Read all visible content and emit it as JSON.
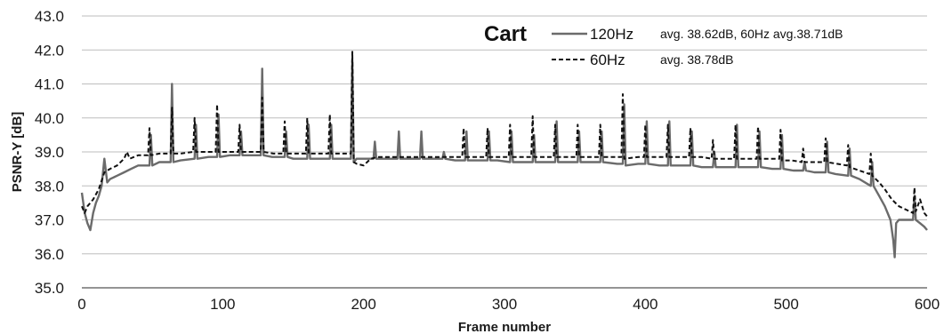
{
  "chart_data": {
    "type": "line",
    "title": "Cart",
    "xlabel": "Frame number",
    "ylabel": "PSNR-Y [dB]",
    "xlim": [
      0,
      600
    ],
    "ylim": [
      35.0,
      43.0
    ],
    "x_ticks": [
      "0",
      "100",
      "200",
      "300",
      "400",
      "500",
      "600"
    ],
    "y_ticks": [
      "35.0",
      "36.0",
      "37.0",
      "38.0",
      "39.0",
      "40.0",
      "41.0",
      "42.0",
      "43.0"
    ],
    "grid": "horizontal",
    "legend": {
      "position": "top-right",
      "entries": [
        {
          "series": "120Hz",
          "label": "120Hz",
          "note": "avg. 38.62dB, 60Hz avg.38.71dB"
        },
        {
          "series": "60Hz",
          "label": "60Hz",
          "note": "avg. 38.78dB"
        }
      ]
    },
    "series": [
      {
        "name": "120Hz",
        "color": "#6b6b6b",
        "style": "solid",
        "points": [
          [
            0,
            37.8
          ],
          [
            2,
            37.2
          ],
          [
            4,
            36.9
          ],
          [
            6,
            36.7
          ],
          [
            8,
            37.2
          ],
          [
            10,
            37.5
          ],
          [
            12,
            37.7
          ],
          [
            14,
            38.0
          ],
          [
            16,
            38.8
          ],
          [
            18,
            38.1
          ],
          [
            20,
            38.2
          ],
          [
            25,
            38.3
          ],
          [
            30,
            38.4
          ],
          [
            35,
            38.5
          ],
          [
            40,
            38.6
          ],
          [
            45,
            38.6
          ],
          [
            48,
            38.6
          ],
          [
            49,
            39.5
          ],
          [
            50,
            38.6
          ],
          [
            55,
            38.7
          ],
          [
            60,
            38.7
          ],
          [
            63,
            38.7
          ],
          [
            64,
            41.0
          ],
          [
            65,
            38.7
          ],
          [
            70,
            38.75
          ],
          [
            80,
            38.8
          ],
          [
            81,
            39.8
          ],
          [
            82,
            38.8
          ],
          [
            90,
            38.85
          ],
          [
            96,
            38.85
          ],
          [
            97,
            40.1
          ],
          [
            98,
            38.85
          ],
          [
            105,
            38.9
          ],
          [
            112,
            38.9
          ],
          [
            113,
            39.6
          ],
          [
            114,
            38.9
          ],
          [
            120,
            38.9
          ],
          [
            127,
            38.9
          ],
          [
            128,
            41.45
          ],
          [
            129,
            38.9
          ],
          [
            135,
            38.85
          ],
          [
            144,
            38.85
          ],
          [
            145,
            39.6
          ],
          [
            146,
            38.85
          ],
          [
            150,
            38.8
          ],
          [
            160,
            38.8
          ],
          [
            161,
            39.8
          ],
          [
            162,
            38.8
          ],
          [
            170,
            38.8
          ],
          [
            176,
            38.8
          ],
          [
            177,
            39.8
          ],
          [
            178,
            38.8
          ],
          [
            185,
            38.8
          ],
          [
            191,
            38.8
          ],
          [
            192,
            41.7
          ],
          [
            193,
            38.7
          ],
          [
            195,
            38.8
          ],
          [
            200,
            38.8
          ],
          [
            207,
            38.8
          ],
          [
            208,
            39.3
          ],
          [
            209,
            38.8
          ],
          [
            215,
            38.8
          ],
          [
            224,
            38.8
          ],
          [
            225,
            39.6
          ],
          [
            226,
            38.8
          ],
          [
            235,
            38.8
          ],
          [
            240,
            38.8
          ],
          [
            241,
            39.6
          ],
          [
            242,
            38.8
          ],
          [
            250,
            38.8
          ],
          [
            256,
            38.8
          ],
          [
            257,
            39.0
          ],
          [
            258,
            38.8
          ],
          [
            265,
            38.75
          ],
          [
            272,
            38.75
          ],
          [
            273,
            39.6
          ],
          [
            274,
            38.75
          ],
          [
            280,
            38.75
          ],
          [
            288,
            38.75
          ],
          [
            289,
            39.6
          ],
          [
            290,
            38.75
          ],
          [
            295,
            38.75
          ],
          [
            304,
            38.7
          ],
          [
            305,
            39.6
          ],
          [
            306,
            38.7
          ],
          [
            315,
            38.7
          ],
          [
            320,
            38.7
          ],
          [
            321,
            39.5
          ],
          [
            322,
            38.7
          ],
          [
            330,
            38.7
          ],
          [
            336,
            38.7
          ],
          [
            337,
            39.9
          ],
          [
            338,
            38.7
          ],
          [
            345,
            38.7
          ],
          [
            352,
            38.7
          ],
          [
            353,
            39.6
          ],
          [
            354,
            38.7
          ],
          [
            360,
            38.7
          ],
          [
            368,
            38.7
          ],
          [
            369,
            39.6
          ],
          [
            370,
            38.7
          ],
          [
            380,
            38.65
          ],
          [
            384,
            38.65
          ],
          [
            385,
            40.4
          ],
          [
            386,
            38.6
          ],
          [
            395,
            38.65
          ],
          [
            400,
            38.65
          ],
          [
            401,
            39.9
          ],
          [
            402,
            38.65
          ],
          [
            410,
            38.6
          ],
          [
            416,
            38.6
          ],
          [
            417,
            39.9
          ],
          [
            418,
            38.6
          ],
          [
            425,
            38.6
          ],
          [
            432,
            38.6
          ],
          [
            433,
            39.6
          ],
          [
            434,
            38.6
          ],
          [
            440,
            38.55
          ],
          [
            448,
            38.55
          ],
          [
            449,
            39.0
          ],
          [
            450,
            38.55
          ],
          [
            460,
            38.55
          ],
          [
            464,
            38.55
          ],
          [
            465,
            39.8
          ],
          [
            466,
            38.55
          ],
          [
            475,
            38.55
          ],
          [
            480,
            38.55
          ],
          [
            481,
            39.6
          ],
          [
            482,
            38.55
          ],
          [
            490,
            38.5
          ],
          [
            496,
            38.5
          ],
          [
            497,
            39.5
          ],
          [
            498,
            38.5
          ],
          [
            505,
            38.45
          ],
          [
            512,
            38.45
          ],
          [
            513,
            38.7
          ],
          [
            514,
            38.45
          ],
          [
            520,
            38.4
          ],
          [
            528,
            38.4
          ],
          [
            529,
            39.3
          ],
          [
            530,
            38.4
          ],
          [
            535,
            38.35
          ],
          [
            544,
            38.3
          ],
          [
            545,
            39.1
          ],
          [
            546,
            38.3
          ],
          [
            552,
            38.2
          ],
          [
            560,
            38.0
          ],
          [
            561,
            38.7
          ],
          [
            562,
            38.0
          ],
          [
            566,
            37.7
          ],
          [
            570,
            37.4
          ],
          [
            574,
            37.0
          ],
          [
            576,
            36.4
          ],
          [
            577,
            35.9
          ],
          [
            578,
            36.9
          ],
          [
            580,
            37.0
          ],
          [
            585,
            37.0
          ],
          [
            590,
            37.0
          ],
          [
            591,
            37.7
          ],
          [
            592,
            37.0
          ],
          [
            595,
            36.9
          ],
          [
            598,
            36.8
          ],
          [
            600,
            36.7
          ]
        ]
      },
      {
        "name": "60Hz",
        "color": "#111111",
        "style": "dashed",
        "points": [
          [
            0,
            37.4
          ],
          [
            2,
            37.2
          ],
          [
            4,
            37.4
          ],
          [
            8,
            37.6
          ],
          [
            12,
            37.9
          ],
          [
            16,
            38.4
          ],
          [
            20,
            38.5
          ],
          [
            25,
            38.6
          ],
          [
            30,
            38.8
          ],
          [
            32,
            39.0
          ],
          [
            34,
            38.8
          ],
          [
            40,
            38.9
          ],
          [
            47,
            38.9
          ],
          [
            48,
            39.7
          ],
          [
            49,
            38.9
          ],
          [
            55,
            38.95
          ],
          [
            63,
            38.95
          ],
          [
            64,
            40.3
          ],
          [
            65,
            38.95
          ],
          [
            70,
            38.95
          ],
          [
            79,
            39.0
          ],
          [
            80,
            40.0
          ],
          [
            81,
            39.0
          ],
          [
            88,
            39.0
          ],
          [
            95,
            39.0
          ],
          [
            96,
            40.4
          ],
          [
            97,
            39.0
          ],
          [
            105,
            39.0
          ],
          [
            111,
            39.0
          ],
          [
            112,
            39.8
          ],
          [
            113,
            39.0
          ],
          [
            120,
            39.0
          ],
          [
            127,
            39.0
          ],
          [
            128,
            40.6
          ],
          [
            129,
            39.0
          ],
          [
            136,
            38.95
          ],
          [
            143,
            38.95
          ],
          [
            144,
            39.9
          ],
          [
            145,
            38.95
          ],
          [
            150,
            38.95
          ],
          [
            159,
            38.95
          ],
          [
            160,
            40.0
          ],
          [
            161,
            38.95
          ],
          [
            168,
            38.95
          ],
          [
            175,
            38.95
          ],
          [
            176,
            40.1
          ],
          [
            177,
            38.95
          ],
          [
            185,
            38.95
          ],
          [
            191,
            38.95
          ],
          [
            192,
            41.95
          ],
          [
            193,
            38.7
          ],
          [
            195,
            38.65
          ],
          [
            200,
            38.6
          ],
          [
            205,
            38.8
          ],
          [
            210,
            38.85
          ],
          [
            220,
            38.85
          ],
          [
            230,
            38.85
          ],
          [
            240,
            38.85
          ],
          [
            250,
            38.85
          ],
          [
            260,
            38.85
          ],
          [
            270,
            38.85
          ],
          [
            271,
            39.7
          ],
          [
            272,
            38.85
          ],
          [
            280,
            38.85
          ],
          [
            287,
            38.85
          ],
          [
            288,
            39.7
          ],
          [
            289,
            38.85
          ],
          [
            295,
            38.85
          ],
          [
            303,
            38.85
          ],
          [
            304,
            39.8
          ],
          [
            305,
            38.85
          ],
          [
            312,
            38.85
          ],
          [
            319,
            38.85
          ],
          [
            320,
            40.05
          ],
          [
            321,
            38.85
          ],
          [
            328,
            38.85
          ],
          [
            335,
            38.85
          ],
          [
            336,
            39.8
          ],
          [
            337,
            38.85
          ],
          [
            344,
            38.85
          ],
          [
            351,
            38.85
          ],
          [
            352,
            39.8
          ],
          [
            353,
            38.85
          ],
          [
            360,
            38.85
          ],
          [
            367,
            38.85
          ],
          [
            368,
            39.8
          ],
          [
            369,
            38.85
          ],
          [
            376,
            38.85
          ],
          [
            383,
            38.85
          ],
          [
            384,
            40.7
          ],
          [
            385,
            38.8
          ],
          [
            395,
            38.85
          ],
          [
            399,
            38.85
          ],
          [
            400,
            39.8
          ],
          [
            401,
            38.85
          ],
          [
            408,
            38.85
          ],
          [
            415,
            38.85
          ],
          [
            416,
            39.8
          ],
          [
            417,
            38.85
          ],
          [
            424,
            38.85
          ],
          [
            431,
            38.85
          ],
          [
            432,
            39.7
          ],
          [
            433,
            38.85
          ],
          [
            440,
            38.85
          ],
          [
            447,
            38.8
          ],
          [
            448,
            39.35
          ],
          [
            449,
            38.8
          ],
          [
            456,
            38.8
          ],
          [
            463,
            38.8
          ],
          [
            464,
            39.8
          ],
          [
            465,
            38.8
          ],
          [
            472,
            38.8
          ],
          [
            479,
            38.8
          ],
          [
            480,
            39.75
          ],
          [
            481,
            38.8
          ],
          [
            488,
            38.8
          ],
          [
            495,
            38.8
          ],
          [
            496,
            39.65
          ],
          [
            497,
            38.75
          ],
          [
            504,
            38.75
          ],
          [
            511,
            38.7
          ],
          [
            512,
            39.1
          ],
          [
            513,
            38.7
          ],
          [
            520,
            38.7
          ],
          [
            527,
            38.7
          ],
          [
            528,
            39.4
          ],
          [
            529,
            38.7
          ],
          [
            536,
            38.65
          ],
          [
            543,
            38.6
          ],
          [
            544,
            39.2
          ],
          [
            545,
            38.55
          ],
          [
            552,
            38.45
          ],
          [
            559,
            38.35
          ],
          [
            560,
            38.95
          ],
          [
            561,
            38.3
          ],
          [
            566,
            38.1
          ],
          [
            570,
            37.9
          ],
          [
            575,
            37.6
          ],
          [
            580,
            37.4
          ],
          [
            585,
            37.3
          ],
          [
            590,
            37.2
          ],
          [
            591,
            37.95
          ],
          [
            592,
            37.25
          ],
          [
            595,
            37.6
          ],
          [
            598,
            37.2
          ],
          [
            600,
            37.1
          ]
        ]
      }
    ]
  }
}
